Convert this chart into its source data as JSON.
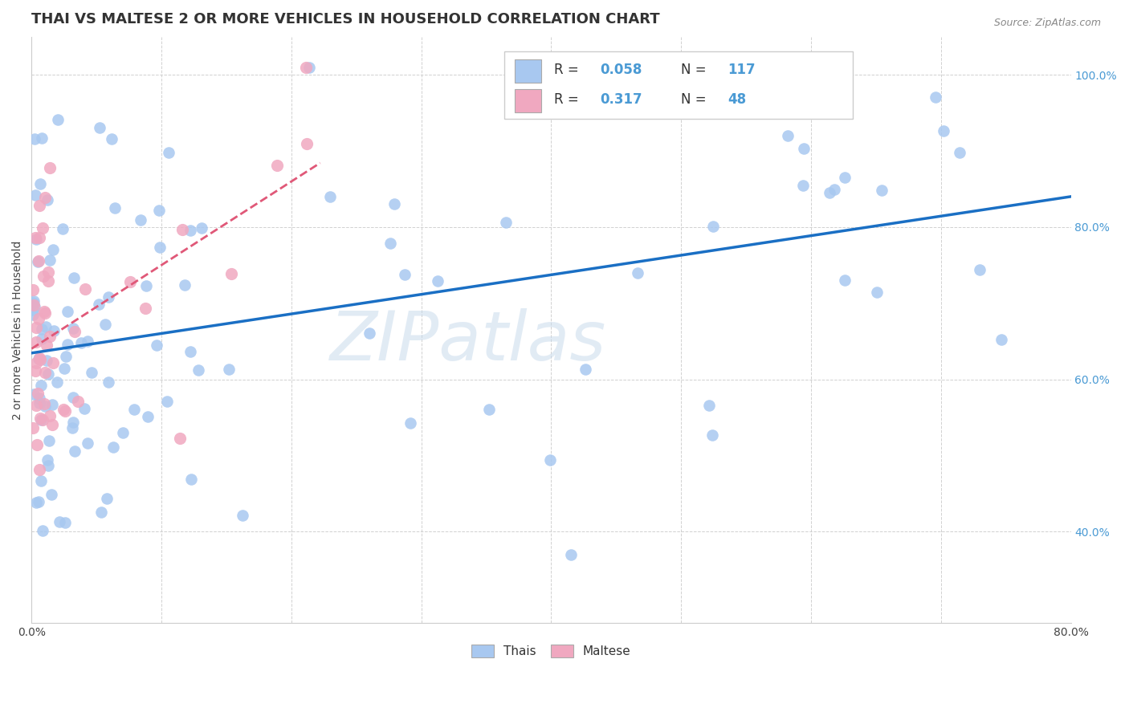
{
  "title": "THAI VS MALTESE 2 OR MORE VEHICLES IN HOUSEHOLD CORRELATION CHART",
  "source": "Source: ZipAtlas.com",
  "ylabel": "2 or more Vehicles in Household",
  "watermark": "ZIPatlas",
  "xlim": [
    0.0,
    0.8
  ],
  "ylim": [
    0.28,
    1.05
  ],
  "xticks": [
    0.0,
    0.1,
    0.2,
    0.3,
    0.4,
    0.5,
    0.6,
    0.7,
    0.8
  ],
  "xtick_labels": [
    "0.0%",
    "",
    "",
    "",
    "",
    "",
    "",
    "",
    "80.0%"
  ],
  "yticks": [
    0.4,
    0.6,
    0.8,
    1.0
  ],
  "ytick_labels": [
    "40.0%",
    "60.0%",
    "80.0%",
    "100.0%"
  ],
  "thai_color": "#a8c8f0",
  "maltese_color": "#f0a8c0",
  "thai_line_color": "#1a6fc4",
  "maltese_line_color": "#e05878",
  "right_ytick_color": "#4a9ad4",
  "legend_R_color": "#4a9ad4",
  "thai_R": 0.058,
  "thai_N": 117,
  "maltese_R": 0.317,
  "maltese_N": 48,
  "bg_color": "#ffffff",
  "grid_color": "#cccccc",
  "title_fontsize": 13,
  "label_fontsize": 10,
  "tick_fontsize": 10,
  "legend_fontsize": 12
}
